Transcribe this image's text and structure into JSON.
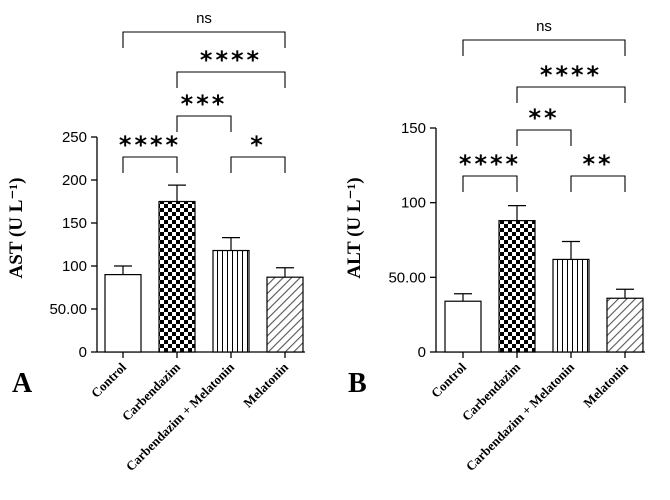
{
  "figure": {
    "categories": [
      "Control",
      "Carbendazim",
      "Carbendazim + Melatonin",
      "Melatonin"
    ]
  },
  "chart_data": [
    {
      "type": "bar",
      "panel": "A",
      "ylabel": "AST (U L⁻¹)",
      "ylim": [
        0,
        250
      ],
      "yticks": [
        "0",
        "50.00",
        "100",
        "150",
        "200",
        "250"
      ],
      "ytick_values": [
        0,
        50,
        100,
        150,
        200,
        250
      ],
      "categories": [
        "Control",
        "Carbendazim",
        "Carbendazim + Melatonin",
        "Melatonin"
      ],
      "values": [
        90,
        175,
        118,
        87
      ],
      "errors": [
        10,
        19,
        15,
        11
      ],
      "patterns": [
        "solid",
        "checker",
        "vertical",
        "diagonal"
      ],
      "significance": [
        {
          "from": 0,
          "to": 3,
          "label": "ns",
          "level": 8
        },
        {
          "from": 1,
          "to": 3,
          "label": "****",
          "level": 6
        },
        {
          "from": 1,
          "to": 2,
          "label": "***",
          "level": 4
        },
        {
          "from": 0,
          "to": 1,
          "label": "****",
          "level": 1
        },
        {
          "from": 2,
          "to": 3,
          "label": "*",
          "level": 1
        }
      ]
    },
    {
      "type": "bar",
      "panel": "B",
      "ylabel": "ALT (U L⁻¹)",
      "ylim": [
        0,
        150
      ],
      "yticks": [
        "0",
        "50.00",
        "100",
        "150"
      ],
      "ytick_values": [
        0,
        50,
        100,
        150
      ],
      "categories": [
        "Control",
        "Carbendazim",
        "Carbendazim + Melatonin",
        "Melatonin"
      ],
      "values": [
        34,
        88,
        62,
        36
      ],
      "errors": [
        5,
        10,
        12,
        6
      ],
      "patterns": [
        "solid",
        "checker",
        "vertical",
        "diagonal"
      ],
      "significance": [
        {
          "from": 0,
          "to": 3,
          "label": "ns",
          "level": 8
        },
        {
          "from": 1,
          "to": 3,
          "label": "****",
          "level": 6
        },
        {
          "from": 1,
          "to": 2,
          "label": "**",
          "level": 4
        },
        {
          "from": 0,
          "to": 1,
          "label": "****",
          "level": 1
        },
        {
          "from": 2,
          "to": 3,
          "label": "**",
          "level": 1
        }
      ]
    }
  ]
}
